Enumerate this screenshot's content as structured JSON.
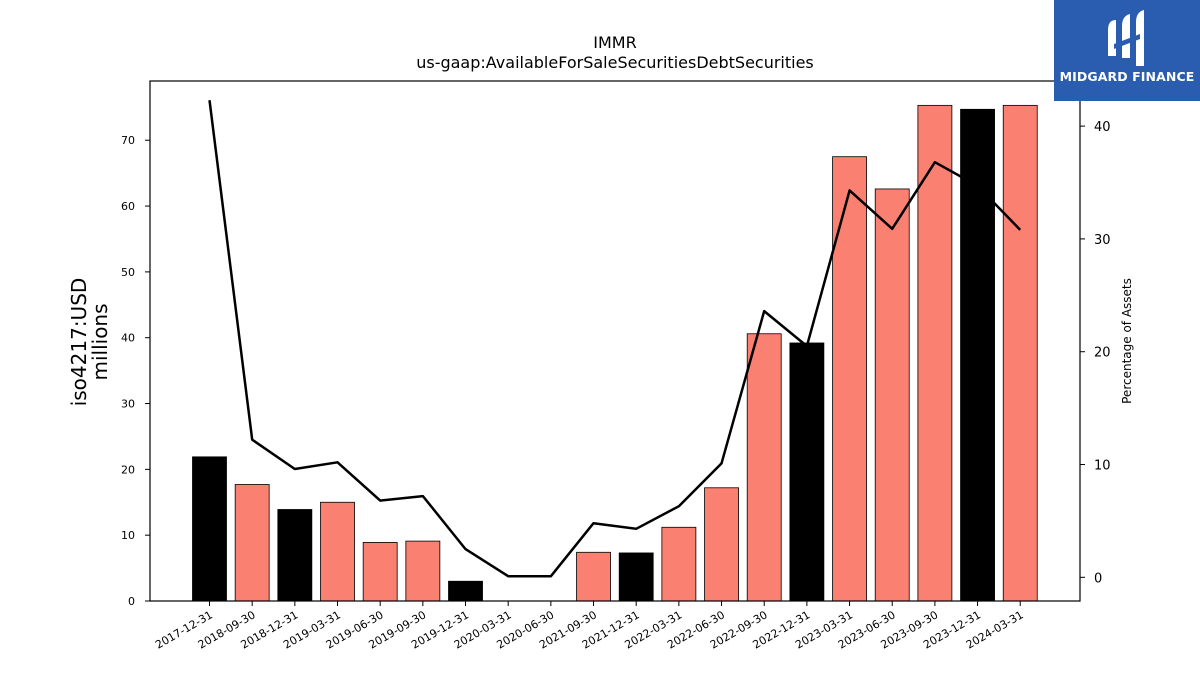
{
  "chart_data": {
    "type": "bar",
    "title": "IMMR",
    "subtitle": "us-gaap:AvailableForSaleSecuritiesDebtSecurities",
    "ylabel": "iso4217:USD\nmillions",
    "y2label": "Percentage of Assets",
    "ylim": [
      0,
      79
    ],
    "y2lim": [
      -2.1,
      44
    ],
    "yticks": [
      0,
      10,
      20,
      30,
      40,
      50,
      60,
      70
    ],
    "y2ticks": [
      0,
      10,
      20,
      30,
      40
    ],
    "categories": [
      "2017-12-31",
      "2018-09-30",
      "2018-12-31",
      "2019-03-31",
      "2019-06-30",
      "2019-09-30",
      "2019-12-31",
      "2020-03-31",
      "2020-06-30",
      "2021-09-30",
      "2021-12-31",
      "2022-03-31",
      "2022-06-30",
      "2022-09-30",
      "2022-12-31",
      "2023-03-31",
      "2023-06-30",
      "2023-09-30",
      "2023-12-31",
      "2024-03-31"
    ],
    "series": [
      {
        "values": [
          21.9,
          17.7,
          13.9,
          15.0,
          8.9,
          9.1,
          3.0,
          0,
          0,
          7.4,
          7.3,
          11.2,
          17.2,
          40.6,
          39.2,
          67.5,
          62.6,
          75.3,
          74.7,
          75.3
        ],
        "colors": [
          "#000000",
          "#fa8072",
          "#000000",
          "#fa8072",
          "#fa8072",
          "#fa8072",
          "#000000",
          "#fa8072",
          "#fa8072",
          "#fa8072",
          "#000000",
          "#fa8072",
          "#fa8072",
          "#fa8072",
          "#000000",
          "#fa8072",
          "#fa8072",
          "#fa8072",
          "#000000",
          "#fa8072"
        ]
      },
      {
        "axis": "right",
        "type": "line",
        "values": [
          42.3,
          12.2,
          9.6,
          10.2,
          6.8,
          7.2,
          2.5,
          0.1,
          0.1,
          4.8,
          4.3,
          6.3,
          10.1,
          23.6,
          20.5,
          34.3,
          30.9,
          36.8,
          34.7,
          30.8
        ]
      }
    ],
    "colors": {
      "bar_primary": "#fa8072",
      "bar_highlight": "#000000",
      "line": "#000000"
    }
  },
  "logo": {
    "text": "MIDGARD FINANCE"
  }
}
